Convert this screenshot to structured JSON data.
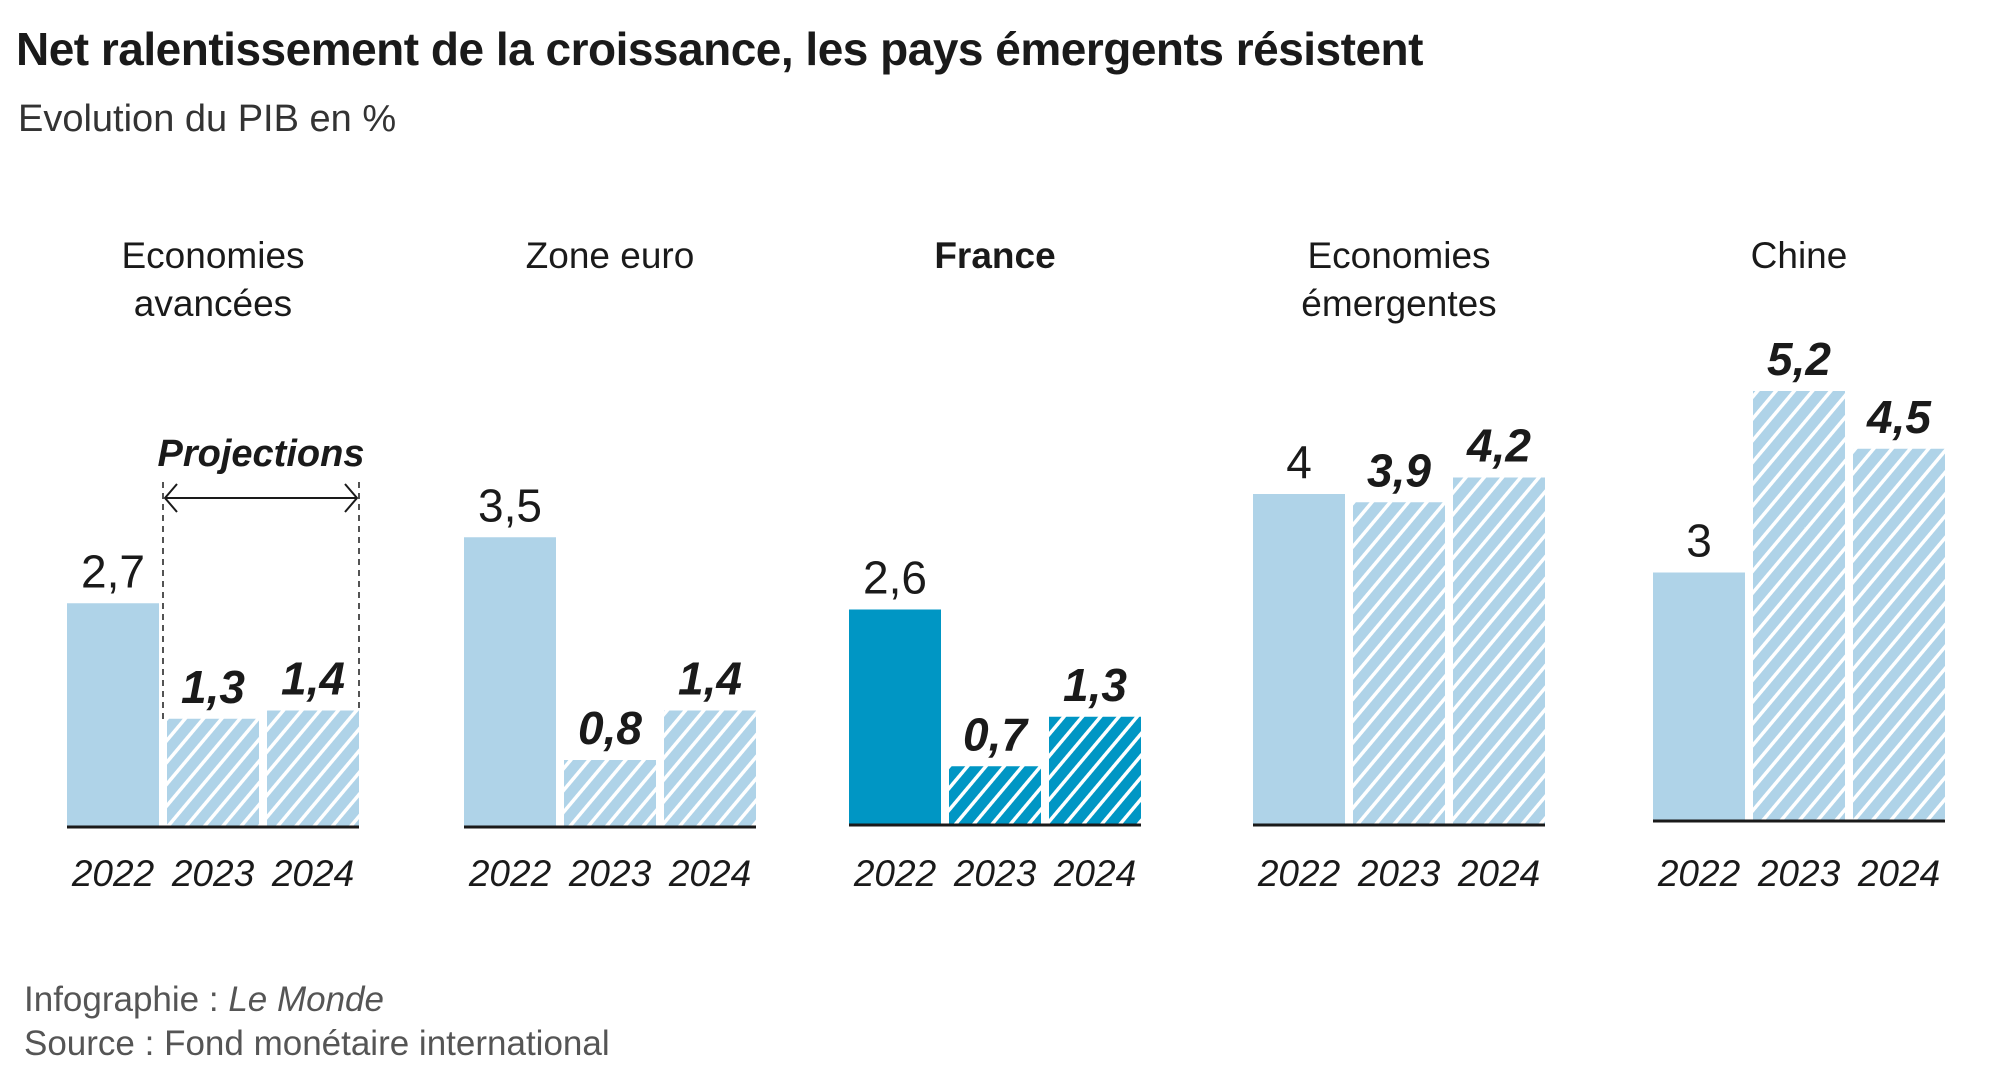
{
  "title": "Net ralentissement de la croissance, les pays émergents résistent",
  "subtitle": "Evolution du PIB en %",
  "chart_data": {
    "type": "bar",
    "title": "Net ralentissement de la croissance, les pays émergents résistent",
    "ylabel": "Evolution du PIB en %",
    "categories": [
      "2022",
      "2023",
      "2024"
    ],
    "projection_label": "Projections",
    "projected_categories": [
      "2023",
      "2024"
    ],
    "ylim": [
      0,
      5.2
    ],
    "grid": false,
    "panels": [
      {
        "name": "Economies avancées",
        "name_lines": [
          "Economies",
          "avancées"
        ],
        "highlight": false,
        "values": [
          2.7,
          1.3,
          1.4
        ],
        "labels": [
          "2,7",
          "1,3",
          "1,4"
        ]
      },
      {
        "name": "Zone euro",
        "name_lines": [
          "Zone euro"
        ],
        "highlight": false,
        "values": [
          3.5,
          0.8,
          1.4
        ],
        "labels": [
          "3,5",
          "0,8",
          "1,4"
        ]
      },
      {
        "name": "France",
        "name_lines": [
          "France"
        ],
        "highlight": true,
        "values": [
          2.6,
          0.7,
          1.3
        ],
        "labels": [
          "2,6",
          "0,7",
          "1,3"
        ]
      },
      {
        "name": "Economies émergentes",
        "name_lines": [
          "Economies",
          "émergentes"
        ],
        "highlight": false,
        "values": [
          4,
          3.9,
          4.2
        ],
        "labels": [
          "4",
          "3,9",
          "4,2"
        ]
      },
      {
        "name": "Chine",
        "name_lines": [
          "Chine"
        ],
        "highlight": false,
        "values": [
          3,
          5.2,
          4.5
        ],
        "labels": [
          "3",
          "5,2",
          "4,5"
        ]
      }
    ],
    "colors": {
      "default": "#afd3e8",
      "highlight": "#0096c4",
      "axis": "#1a1a1a"
    }
  },
  "footer": {
    "credit_prefix": "Infographie : ",
    "credit_name": "Le Monde",
    "source": "Source : Fond monétaire international"
  }
}
